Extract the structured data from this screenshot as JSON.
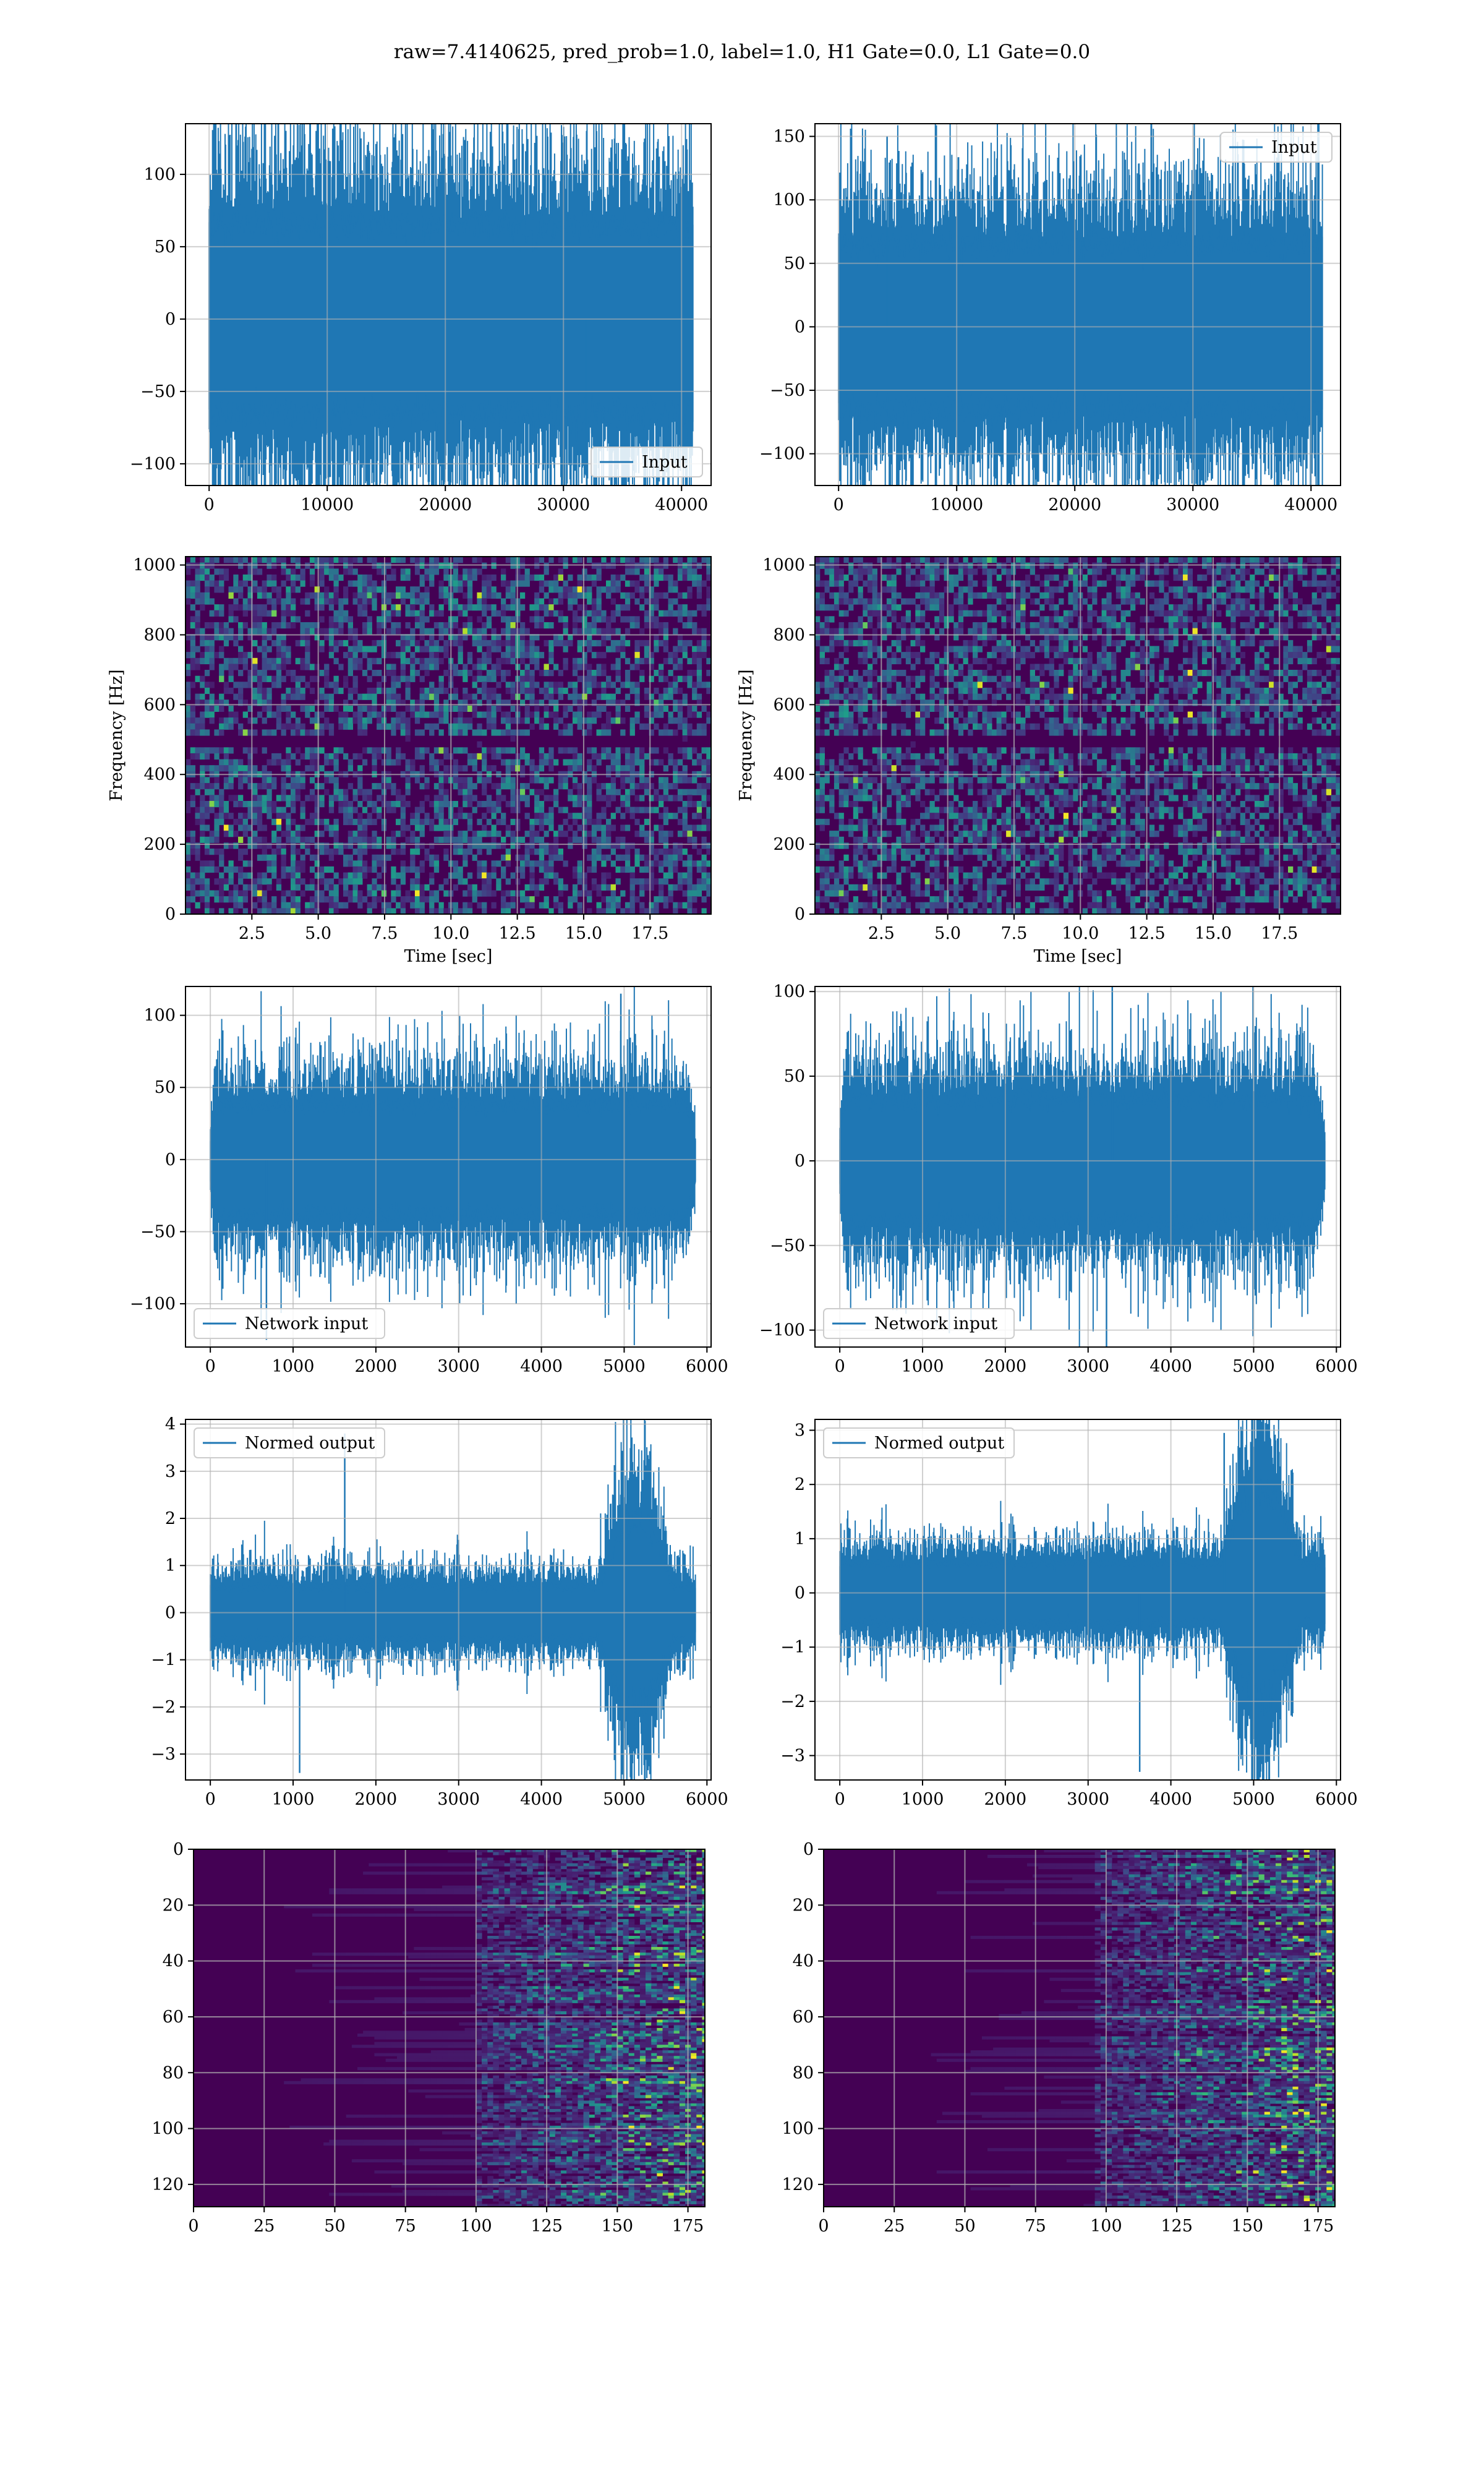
{
  "figure": {
    "suptitle": "raw=7.4140625, pred_prob=1.0, label=1.0, H1 Gate=0.0, L1 Gate=0.0",
    "colors": {
      "line": "#1f77b4",
      "grid": "#b0b0b0",
      "viridis_low": "#440154",
      "viridis_high": "#fde725"
    }
  },
  "chart_data": [
    {
      "id": "r1c1",
      "type": "line",
      "title": "",
      "xlabel": "",
      "ylabel": "",
      "xlim": [
        -2000,
        42500
      ],
      "ylim": [
        -115,
        135
      ],
      "xticks": [
        0,
        10000,
        20000,
        30000,
        40000
      ],
      "yticks": [
        -100,
        -50,
        0,
        50,
        100
      ],
      "grid": true,
      "legend": "lower right",
      "series": [
        {
          "name": "Input",
          "x_range": [
            0,
            40960
          ],
          "core_amplitude": 65,
          "peak_max": 125,
          "peak_min": -108
        }
      ]
    },
    {
      "id": "r1c2",
      "type": "line",
      "title": "",
      "xlabel": "",
      "ylabel": "",
      "xlim": [
        -2000,
        42500
      ],
      "ylim": [
        -125,
        160
      ],
      "xticks": [
        0,
        10000,
        20000,
        30000,
        40000
      ],
      "yticks": [
        -100,
        -50,
        0,
        50,
        100,
        150
      ],
      "grid": true,
      "legend": "upper right",
      "series": [
        {
          "name": "Input",
          "x_range": [
            0,
            40960
          ],
          "core_amplitude": 65,
          "peak_max": 150,
          "peak_min": -122
        }
      ]
    },
    {
      "id": "r2c1",
      "type": "heatmap",
      "title": "",
      "xlabel": "Time [sec]",
      "ylabel": "Frequency [Hz]",
      "xlim": [
        0,
        19.8
      ],
      "ylim": [
        0,
        1024
      ],
      "xticks": [
        2.5,
        5.0,
        7.5,
        10.0,
        12.5,
        15.0,
        17.5
      ],
      "xticklabels": [
        "2.5",
        "5.0",
        "7.5",
        "10.0",
        "12.5",
        "15.0",
        "17.5"
      ],
      "yticks": [
        0,
        200,
        400,
        600,
        800,
        1000
      ],
      "grid": true,
      "colormap": "viridis"
    },
    {
      "id": "r2c2",
      "type": "heatmap",
      "title": "",
      "xlabel": "Time [sec]",
      "ylabel": "Frequency [Hz]",
      "xlim": [
        0,
        19.8
      ],
      "ylim": [
        0,
        1024
      ],
      "xticks": [
        2.5,
        5.0,
        7.5,
        10.0,
        12.5,
        15.0,
        17.5
      ],
      "xticklabels": [
        "2.5",
        "5.0",
        "7.5",
        "10.0",
        "12.5",
        "15.0",
        "17.5"
      ],
      "yticks": [
        0,
        200,
        400,
        600,
        800,
        1000
      ],
      "grid": true,
      "colormap": "viridis"
    },
    {
      "id": "r3c1",
      "type": "line",
      "title": "",
      "xlabel": "",
      "ylabel": "",
      "xlim": [
        -300,
        6050
      ],
      "ylim": [
        -130,
        120
      ],
      "xticks": [
        0,
        1000,
        2000,
        3000,
        4000,
        5000,
        6000
      ],
      "yticks": [
        -100,
        -50,
        0,
        50,
        100
      ],
      "grid": true,
      "legend": "lower left",
      "series": [
        {
          "name": "Network input",
          "x_range": [
            0,
            5860
          ],
          "core_amplitude": 38,
          "peak_max": 115,
          "peak_min": -125,
          "taper": true
        }
      ]
    },
    {
      "id": "r3c2",
      "type": "line",
      "title": "",
      "xlabel": "",
      "ylabel": "",
      "xlim": [
        -300,
        6050
      ],
      "ylim": [
        -110,
        103
      ],
      "xticks": [
        0,
        1000,
        2000,
        3000,
        4000,
        5000,
        6000
      ],
      "yticks": [
        -100,
        -50,
        0,
        50,
        100
      ],
      "grid": true,
      "legend": "lower left",
      "series": [
        {
          "name": "Network input",
          "x_range": [
            0,
            5860
          ],
          "core_amplitude": 36,
          "peak_max": 110,
          "peak_min": -110,
          "taper": true
        }
      ]
    },
    {
      "id": "r4c1",
      "type": "line",
      "title": "",
      "xlabel": "",
      "ylabel": "",
      "xlim": [
        -300,
        6050
      ],
      "ylim": [
        -3.55,
        4.1
      ],
      "xticks": [
        0,
        1000,
        2000,
        3000,
        4000,
        5000,
        6000
      ],
      "yticks": [
        -3,
        -2,
        -1,
        0,
        1,
        2,
        3,
        4
      ],
      "grid": true,
      "legend": "upper left",
      "series": [
        {
          "name": "Normed output",
          "x_range": [
            0,
            5860
          ],
          "core_amplitude": 0.55,
          "peak_max": 3.8,
          "peak_min": -3.4,
          "burst_start": 4700,
          "burst_amplitude": 1.6
        }
      ]
    },
    {
      "id": "r4c2",
      "type": "line",
      "title": "",
      "xlabel": "",
      "ylabel": "",
      "xlim": [
        -300,
        6050
      ],
      "ylim": [
        -3.45,
        3.2
      ],
      "xticks": [
        0,
        1000,
        2000,
        3000,
        4000,
        5000,
        6000
      ],
      "yticks": [
        -3,
        -2,
        -1,
        0,
        1,
        2,
        3
      ],
      "grid": true,
      "legend": "upper left",
      "series": [
        {
          "name": "Normed output",
          "x_range": [
            0,
            5860
          ],
          "core_amplitude": 0.55,
          "peak_max": 2.95,
          "peak_min": -3.3,
          "burst_start": 4600,
          "burst_amplitude": 1.5
        }
      ]
    },
    {
      "id": "r5c1",
      "type": "heatmap",
      "title": "",
      "xlabel": "",
      "ylabel": "",
      "xlim": [
        0,
        181
      ],
      "ylim": [
        128,
        0
      ],
      "xticks": [
        0,
        25,
        50,
        75,
        100,
        125,
        150,
        175
      ],
      "yticks": [
        0,
        20,
        40,
        60,
        80,
        100,
        120
      ],
      "grid": true,
      "colormap": "viridis",
      "active_from": 100
    },
    {
      "id": "r5c2",
      "type": "heatmap",
      "title": "",
      "xlabel": "",
      "ylabel": "",
      "xlim": [
        0,
        181
      ],
      "ylim": [
        128,
        0
      ],
      "xticks": [
        0,
        25,
        50,
        75,
        100,
        125,
        150,
        175
      ],
      "yticks": [
        0,
        20,
        40,
        60,
        80,
        100,
        120
      ],
      "grid": true,
      "colormap": "viridis",
      "active_from": 95
    }
  ]
}
